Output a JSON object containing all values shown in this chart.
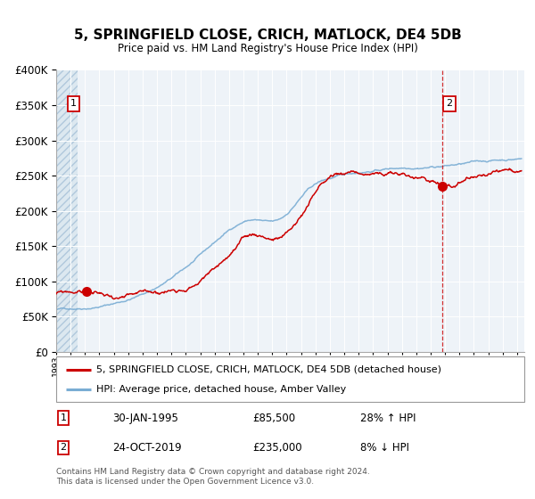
{
  "title": "5, SPRINGFIELD CLOSE, CRICH, MATLOCK, DE4 5DB",
  "subtitle": "Price paid vs. HM Land Registry's House Price Index (HPI)",
  "legend_line1": "5, SPRINGFIELD CLOSE, CRICH, MATLOCK, DE4 5DB (detached house)",
  "legend_line2": "HPI: Average price, detached house, Amber Valley",
  "footnote": "Contains HM Land Registry data © Crown copyright and database right 2024.\nThis data is licensed under the Open Government Licence v3.0.",
  "sale1_date": "30-JAN-1995",
  "sale1_price": "£85,500",
  "sale1_hpi": "28% ↑ HPI",
  "sale1_year": 1995.08,
  "sale1_value": 85500,
  "sale2_date": "24-OCT-2019",
  "sale2_price": "£235,000",
  "sale2_hpi": "8% ↓ HPI",
  "sale2_year": 2019.82,
  "sale2_value": 235000,
  "red_line_color": "#cc0000",
  "blue_line_color": "#7aadd4",
  "ylim": [
    0,
    400000
  ],
  "hatch_threshold": 350000,
  "xlim_left": 1993.0,
  "xlim_right": 2025.5,
  "background_plot": "#eef3f8",
  "hatch_left_end": 1994.5
}
